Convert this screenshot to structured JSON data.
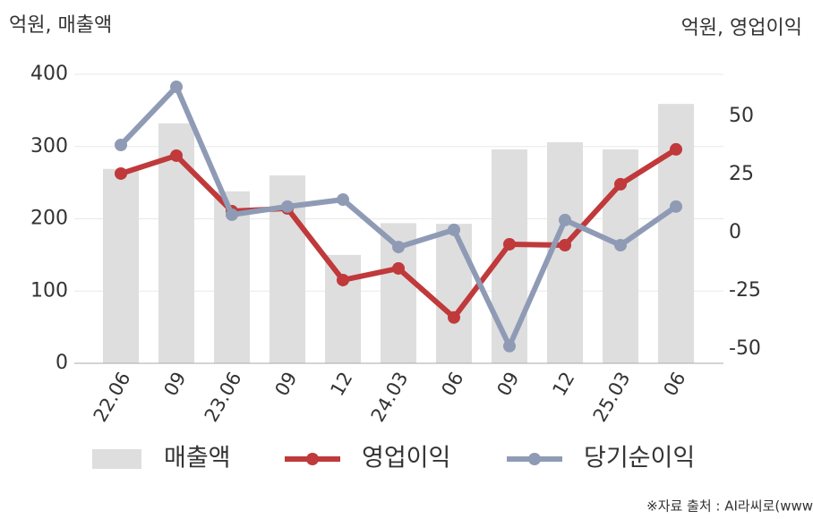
{
  "chart_data": {
    "type": "bar",
    "y_label": "억원, 매출액",
    "y2_label": "억원, 영업이익",
    "source": "※자료 출처 : AI라씨로(www",
    "categories": [
      "22.06",
      "09",
      "23.06",
      "09",
      "12",
      "24.03",
      "06",
      "09",
      "12",
      "25.03",
      "06"
    ],
    "series": [
      {
        "name": "매출액",
        "type": "bar",
        "axis": "y",
        "color": "#dedede",
        "values": [
          269,
          332,
          238,
          260,
          150,
          194,
          193,
          296,
          306,
          296,
          359
        ]
      },
      {
        "name": "영업이익",
        "type": "line",
        "axis": "y2",
        "color": "#c0393b",
        "values": [
          25.4,
          33.1,
          9.2,
          10.4,
          -20.4,
          -15.4,
          -36.5,
          -5,
          -5.4,
          20.8,
          35.8
        ]
      },
      {
        "name": "당기순이익",
        "type": "line",
        "axis": "y2",
        "color": "#8f9bb5",
        "values": [
          37.7,
          62.7,
          7.7,
          11.2,
          14.2,
          -6.2,
          1.2,
          -48.8,
          5.4,
          -5.4,
          11.2
        ]
      }
    ],
    "ylim": [
      0,
      400
    ],
    "yticks": [
      0,
      100,
      200,
      300,
      400
    ],
    "y2lim": [
      -56.2,
      68.1
    ],
    "y2ticks": [
      -50,
      -25,
      0,
      25,
      50
    ],
    "grid": true
  }
}
